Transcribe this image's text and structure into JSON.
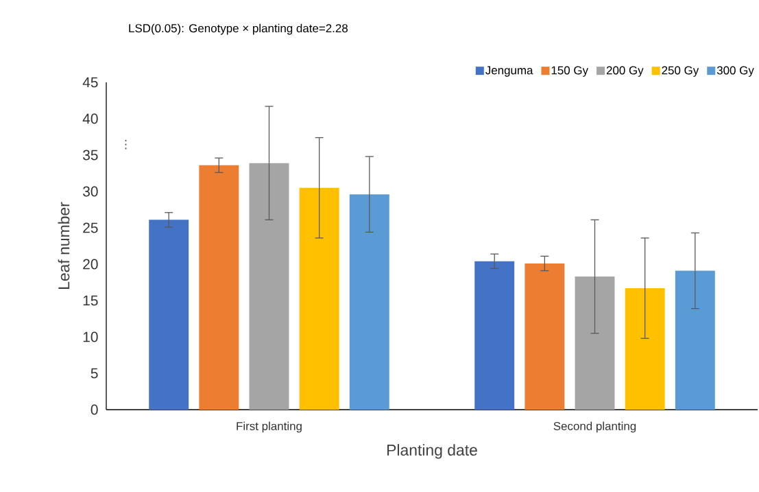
{
  "chart_data": {
    "type": "bar",
    "title": "LSD(0.05): Genotype × planting date=2.28",
    "categories": [
      "First planting",
      "Second planting"
    ],
    "xlabel": "Planting date",
    "ylabel": "Leaf number",
    "ylim": [
      0,
      45
    ],
    "yticks": [
      0,
      5,
      10,
      15,
      20,
      25,
      30,
      35,
      40,
      45
    ],
    "legend": "top right",
    "annotations": [
      "⋮"
    ],
    "series": [
      {
        "name": "Jenguma",
        "color": "#4472c4",
        "values": [
          26.1,
          20.4
        ],
        "errors": [
          1.0,
          1.0
        ]
      },
      {
        "name": "150 Gy",
        "color": "#ed7d31",
        "values": [
          33.6,
          20.1
        ],
        "errors": [
          1.0,
          1.0
        ]
      },
      {
        "name": "200 Gy",
        "color": "#a5a5a5",
        "values": [
          33.9,
          18.3
        ],
        "errors": [
          7.8,
          7.8
        ]
      },
      {
        "name": "250 Gy",
        "color": "#ffc000",
        "values": [
          30.5,
          16.7
        ],
        "errors": [
          6.9,
          6.9
        ]
      },
      {
        "name": "300 Gy",
        "color": "#5b9bd5",
        "values": [
          29.6,
          19.1
        ],
        "errors": [
          5.2,
          5.2
        ]
      }
    ]
  }
}
